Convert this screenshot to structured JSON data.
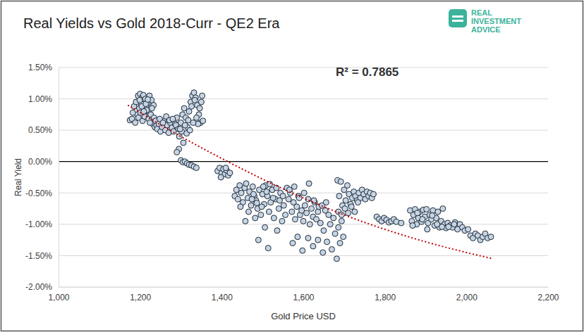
{
  "chart_data": {
    "type": "scatter",
    "title": "Real Yields vs Gold 2018-Curr - QE2 Era",
    "x_label": "Gold Price USD",
    "y_label": "Real Yield",
    "annotation": "R² = 0.7865",
    "logo": [
      "REAL",
      "INVESTMENT",
      "ADVICE"
    ],
    "xlim": [
      1000,
      2200
    ],
    "ylim": [
      -2,
      1.5
    ],
    "xticks": [
      {
        "value": 1000,
        "label": "1,000"
      },
      {
        "value": 1200,
        "label": "1,200"
      },
      {
        "value": 1400,
        "label": "1,400"
      },
      {
        "value": 1600,
        "label": "1,600"
      },
      {
        "value": 1800,
        "label": "1,800"
      },
      {
        "value": 2000,
        "label": "2,000"
      },
      {
        "value": 2200,
        "label": "2,200"
      }
    ],
    "yticks": [
      {
        "value": 1.5,
        "label": "1.50%"
      },
      {
        "value": 1,
        "label": "1.00%"
      },
      {
        "value": 0.5,
        "label": "0.50%"
      },
      {
        "value": 0,
        "label": "0.00%"
      },
      {
        "value": -0.5,
        "label": "-0.50%"
      },
      {
        "value": -1,
        "label": "-1.00%"
      },
      {
        "value": -1.5,
        "label": "-1.50%"
      },
      {
        "value": -2,
        "label": "-2.00%"
      }
    ],
    "grid": true,
    "series": [
      {
        "type": "scatter",
        "marker": "circle",
        "color": "#c6d4e3",
        "x": [
          1175,
          1180,
          1185,
          1190,
          1195,
          1200,
          1205,
          1210,
          1215,
          1220,
          1188,
          1193,
          1198,
          1203,
          1208,
          1213,
          1218,
          1223,
          1228,
          1233,
          1196,
          1201,
          1206,
          1211,
          1216,
          1221,
          1226,
          1231,
          1236,
          1240,
          1182,
          1199,
          1204,
          1209,
          1214,
          1219,
          1224,
          1229,
          1234,
          1238,
          1242,
          1246,
          1250,
          1254,
          1258,
          1262,
          1266,
          1270,
          1274,
          1278,
          1282,
          1286,
          1290,
          1248,
          1256,
          1264,
          1272,
          1280,
          1288,
          1294,
          1296,
          1300,
          1304,
          1308,
          1312,
          1316,
          1320,
          1324,
          1328,
          1332,
          1336,
          1340,
          1344,
          1348,
          1352,
          1302,
          1310,
          1318,
          1326,
          1334,
          1338,
          1342,
          1346,
          1350,
          1354,
          1306,
          1314,
          1322,
          1330,
          1298,
          1300,
          1305,
          1310,
          1315,
          1320,
          1326,
          1332,
          1338,
          1295,
          1290,
          1390,
          1395,
          1400,
          1404,
          1408,
          1412,
          1416,
          1420,
          1398,
          1410,
          1432,
          1436,
          1440,
          1444,
          1448,
          1452,
          1456,
          1460,
          1464,
          1468,
          1472,
          1476,
          1480,
          1484,
          1488,
          1492,
          1496,
          1500,
          1504,
          1508,
          1458,
          1466,
          1474,
          1482,
          1490,
          1498,
          1506,
          1512,
          1516,
          1520,
          1524,
          1528,
          1532,
          1536,
          1540,
          1544,
          1548,
          1552,
          1556,
          1514,
          1502,
          1510,
          1518,
          1526,
          1534,
          1542,
          1550,
          1486,
          1478,
          1446,
          1560,
          1564,
          1568,
          1572,
          1576,
          1580,
          1584,
          1588,
          1592,
          1596,
          1600,
          1604,
          1608,
          1612,
          1616,
          1620,
          1624,
          1628,
          1632,
          1636,
          1566,
          1578,
          1590,
          1602,
          1614,
          1626,
          1638,
          1574,
          1586,
          1598,
          1612,
          1624,
          1636,
          1642,
          1646,
          1650,
          1654,
          1658,
          1662,
          1666,
          1670,
          1674,
          1678,
          1682,
          1686,
          1690,
          1694,
          1698,
          1648,
          1656,
          1684,
          1688,
          1692,
          1696,
          1700,
          1704,
          1708,
          1712,
          1716,
          1720,
          1724,
          1728,
          1732,
          1736,
          1740,
          1744,
          1748,
          1752,
          1756,
          1760,
          1764,
          1768,
          1772,
          1686,
          1694,
          1702,
          1710,
          1718,
          1726,
          1734,
          1780,
          1786,
          1792,
          1798,
          1804,
          1810,
          1816,
          1822,
          1828,
          1840,
          1862,
          1866,
          1870,
          1874,
          1878,
          1882,
          1886,
          1890,
          1894,
          1898,
          1902,
          1906,
          1910,
          1914,
          1918,
          1922,
          1926,
          1930,
          1934,
          1938,
          1942,
          1946,
          1950,
          1868,
          1880,
          1892,
          1904,
          1916,
          1928,
          1940,
          1954,
          1960,
          1966,
          1972,
          1978,
          1984,
          1990,
          1996,
          2004,
          2010,
          2016,
          2022,
          2028,
          2034,
          2040,
          2046,
          2052,
          2060,
          1956,
          1970
        ],
        "values": [
          0.66,
          0.68,
          0.88,
          0.95,
          1.05,
          1.08,
          1.02,
          0.95,
          0.88,
          0.8,
          0.62,
          0.75,
          0.85,
          0.92,
          1.06,
          1.0,
          0.93,
          1.05,
          0.98,
          0.9,
          0.7,
          0.78,
          0.65,
          0.72,
          0.82,
          0.68,
          0.75,
          0.6,
          0.55,
          0.58,
          0.78,
          0.98,
          0.88,
          0.8,
          0.92,
          0.99,
          0.62,
          0.85,
          0.7,
          0.65,
          0.52,
          0.6,
          0.48,
          0.55,
          0.65,
          0.5,
          0.58,
          0.46,
          0.62,
          0.54,
          0.48,
          0.6,
          0.7,
          0.68,
          0.62,
          0.72,
          0.66,
          0.68,
          0.58,
          0.52,
          0.4,
          0.62,
          0.75,
          0.85,
          0.7,
          0.55,
          0.8,
          0.95,
          1.05,
          1.1,
          1.02,
          0.9,
          0.75,
          0.62,
          1.05,
          0.48,
          0.58,
          0.66,
          0.88,
          0.98,
          0.7,
          0.6,
          0.85,
          0.95,
          0.65,
          0.3,
          0.45,
          0.5,
          0.62,
          0.52,
          0.02,
          -0.01,
          0.0,
          -0.03,
          -0.05,
          -0.06,
          -0.08,
          -0.1,
          0.2,
          0.15,
          -0.15,
          -0.1,
          -0.18,
          -0.12,
          -0.2,
          -0.14,
          -0.22,
          -0.18,
          -0.25,
          -0.1,
          -0.55,
          -0.45,
          -0.6,
          -0.38,
          -0.5,
          -0.65,
          -0.42,
          -0.35,
          -0.58,
          -0.48,
          -0.7,
          -0.4,
          -0.55,
          -0.62,
          -0.75,
          -0.45,
          -0.85,
          -0.52,
          -0.68,
          -0.38,
          -0.95,
          -0.8,
          -0.6,
          -0.9,
          -1.25,
          -0.72,
          -1.05,
          -0.55,
          -0.8,
          -0.65,
          -0.45,
          -0.9,
          -0.6,
          -1.1,
          -0.75,
          -0.5,
          -0.95,
          -0.7,
          -0.85,
          -1.38,
          -0.4,
          -0.48,
          -0.36,
          -0.58,
          -0.42,
          -0.62,
          -0.55,
          -0.66,
          -0.52,
          -0.72,
          -0.42,
          -0.6,
          -0.5,
          -0.8,
          -0.65,
          -0.92,
          -0.72,
          -0.55,
          -0.85,
          -0.78,
          -0.95,
          -0.7,
          -0.82,
          -0.6,
          -1.0,
          -0.75,
          -0.88,
          -0.65,
          -0.92,
          -0.8,
          -0.45,
          -0.4,
          -0.58,
          -0.5,
          -0.35,
          -0.62,
          -0.72,
          -1.3,
          -1.2,
          -1.42,
          -1.22,
          -1.35,
          -1.25,
          -0.98,
          -0.7,
          -1.1,
          -0.78,
          -1.28,
          -0.85,
          -1.0,
          -1.4,
          -0.9,
          -1.15,
          -1.55,
          -1.05,
          -1.3,
          -0.95,
          -1.2,
          -1.45,
          -0.65,
          -0.3,
          -0.55,
          -0.32,
          -0.7,
          -0.45,
          -0.62,
          -0.38,
          -0.52,
          -0.68,
          -0.58,
          -0.48,
          -0.55,
          -0.62,
          -0.5,
          -0.58,
          -0.45,
          -0.52,
          -0.6,
          -0.48,
          -0.55,
          -0.5,
          -0.58,
          -0.52,
          -0.8,
          -0.85,
          -0.75,
          -0.82,
          -0.72,
          -0.8,
          -0.65,
          -0.88,
          -0.92,
          -0.95,
          -0.9,
          -0.93,
          -0.97,
          -0.95,
          -0.92,
          -0.96,
          -0.98,
          -0.78,
          -0.95,
          -0.85,
          -0.76,
          -1.0,
          -0.9,
          -0.8,
          -0.96,
          -0.77,
          -0.88,
          -0.76,
          -0.98,
          -0.85,
          -0.92,
          -0.78,
          -1.02,
          -0.9,
          -0.8,
          -1.05,
          -0.95,
          -0.75,
          -1.0,
          -1.06,
          -1.02,
          -0.82,
          -0.92,
          -1.08,
          -0.86,
          -1.0,
          -1.04,
          -0.98,
          -1.02,
          -1.05,
          -0.97,
          -1.08,
          -1.0,
          -1.05,
          -1.1,
          -1.08,
          -1.18,
          -1.22,
          -1.15,
          -1.18,
          -1.25,
          -1.2,
          -1.15,
          -1.22,
          -1.2,
          -1.04,
          -1.0
        ]
      },
      {
        "type": "line",
        "line_style": "dotted",
        "color": "#c00000",
        "x": [
          1170,
          1300,
          1400,
          1500,
          1600,
          1700,
          1800,
          1900,
          2000,
          2065
        ],
        "values": [
          0.9,
          0.4,
          0.05,
          -0.28,
          -0.58,
          -0.85,
          -1.08,
          -1.28,
          -1.45,
          -1.55
        ]
      }
    ]
  }
}
